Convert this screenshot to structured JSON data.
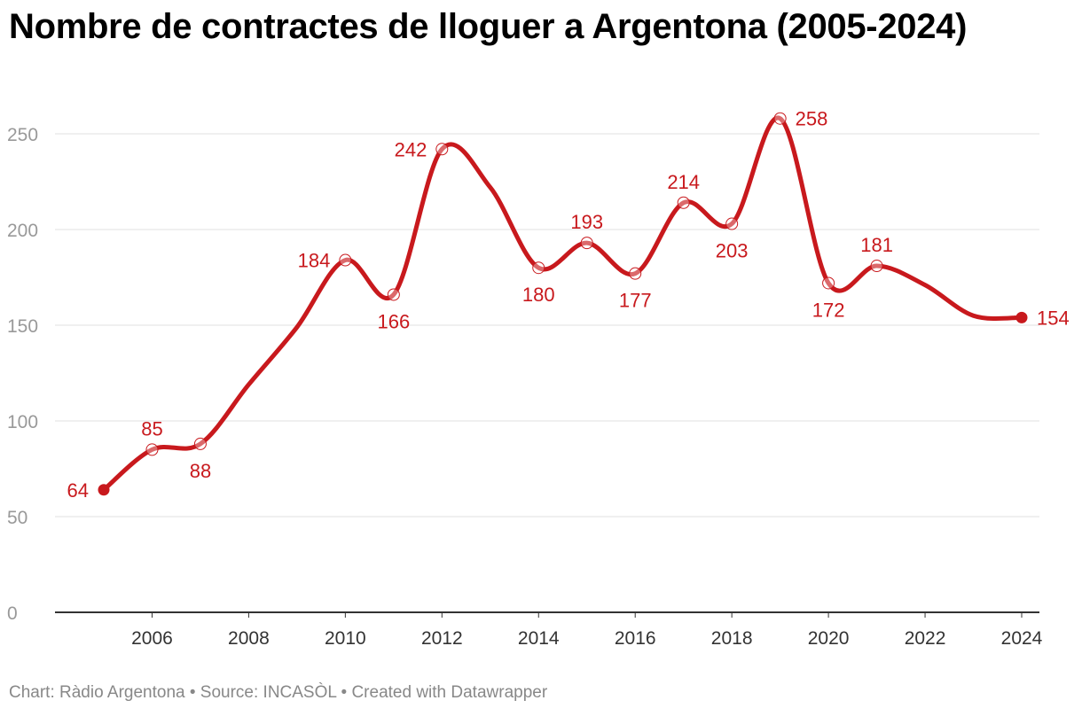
{
  "chart_data": {
    "type": "line",
    "title": "Nombre de contractes de lloguer a Argentona (2005-2024)",
    "xlabel": "",
    "ylabel": "",
    "ylim": [
      0,
      258
    ],
    "x_ticks": [
      2006,
      2008,
      2010,
      2012,
      2014,
      2016,
      2018,
      2020,
      2022,
      2024
    ],
    "y_ticks": [
      0,
      50,
      100,
      150,
      200,
      250
    ],
    "grid": true,
    "legend": "none",
    "series": [
      {
        "name": "Contractes de lloguer",
        "x": [
          2005,
          2006,
          2007,
          2008,
          2009,
          2010,
          2011,
          2012,
          2013,
          2014,
          2015,
          2016,
          2017,
          2018,
          2019,
          2020,
          2021,
          2022,
          2023,
          2024
        ],
        "values": [
          64,
          85,
          88,
          119,
          149,
          184,
          166,
          242,
          222,
          180,
          193,
          177,
          214,
          203,
          258,
          172,
          181,
          171,
          155,
          154
        ]
      }
    ],
    "labels": [
      {
        "year": 2005,
        "text": "64",
        "pos": "left"
      },
      {
        "year": 2006,
        "text": "85",
        "pos": "above"
      },
      {
        "year": 2007,
        "text": "88",
        "pos": "below"
      },
      {
        "year": 2010,
        "text": "184",
        "pos": "left"
      },
      {
        "year": 2011,
        "text": "166",
        "pos": "below"
      },
      {
        "year": 2012,
        "text": "242",
        "pos": "left"
      },
      {
        "year": 2014,
        "text": "180",
        "pos": "below"
      },
      {
        "year": 2015,
        "text": "193",
        "pos": "above"
      },
      {
        "year": 2016,
        "text": "177",
        "pos": "below"
      },
      {
        "year": 2017,
        "text": "214",
        "pos": "above"
      },
      {
        "year": 2018,
        "text": "203",
        "pos": "below"
      },
      {
        "year": 2019,
        "text": "258",
        "pos": "right"
      },
      {
        "year": 2020,
        "text": "172",
        "pos": "below"
      },
      {
        "year": 2021,
        "text": "181",
        "pos": "above"
      },
      {
        "year": 2024,
        "text": "154",
        "pos": "right"
      }
    ],
    "colors": {
      "line": "#c8191d",
      "grid": "#e0e0e0",
      "axis": "#333333",
      "tick_y": "#999999",
      "tick_x": "#333333"
    }
  },
  "footer": {
    "text": "Chart: Ràdio Argentona • Source: INCASÒL • Created with Datawrapper"
  }
}
